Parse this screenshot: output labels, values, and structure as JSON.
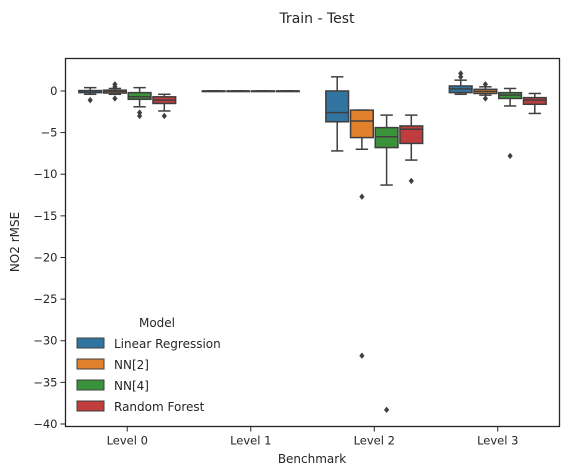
{
  "chart_data": {
    "type": "box",
    "title": "Train - Test",
    "xlabel": "Benchmark",
    "ylabel": "NO2 rMSE",
    "ylim": [
      -40.3,
      3.9
    ],
    "yticks": [
      0,
      -5,
      -10,
      -15,
      -20,
      -25,
      -30,
      -35,
      -40
    ],
    "categories": [
      "Level 0",
      "Level 1",
      "Level 2",
      "Level 3"
    ],
    "grid": false,
    "legend": {
      "title": "Model",
      "position": "lower-left"
    },
    "series": [
      {
        "name": "Linear Regression",
        "color": "#3274a1",
        "boxes": [
          {
            "whislo": -0.4,
            "q1": -0.2,
            "med": 0.0,
            "q3": 0.05,
            "whishi": 0.4,
            "fliers": [
              -1.1
            ]
          },
          {
            "whislo": 0.0,
            "q1": 0.0,
            "med": 0.0,
            "q3": 0.0,
            "whishi": 0.0,
            "fliers": []
          },
          {
            "whislo": -7.2,
            "q1": -3.7,
            "med": -2.6,
            "q3": 0.0,
            "whishi": 1.7,
            "fliers": []
          },
          {
            "whislo": -0.4,
            "q1": -0.2,
            "med": 0.25,
            "q3": 0.6,
            "whishi": 1.3,
            "fliers": [
              2.1,
              1.7
            ]
          }
        ]
      },
      {
        "name": "NN[2]",
        "color": "#e1812c",
        "boxes": [
          {
            "whislo": -0.4,
            "q1": -0.25,
            "med": -0.05,
            "q3": 0.1,
            "whishi": 0.3,
            "fliers": [
              0.8,
              0.5,
              -0.9
            ]
          },
          {
            "whislo": 0.0,
            "q1": 0.0,
            "med": 0.0,
            "q3": 0.0,
            "whishi": 0.0,
            "fliers": []
          },
          {
            "whislo": -7.0,
            "q1": -5.6,
            "med": -3.6,
            "q3": -2.3,
            "whishi": -2.3,
            "fliers": [
              -12.7,
              -31.8
            ]
          },
          {
            "whislo": -0.5,
            "q1": -0.3,
            "med": -0.05,
            "q3": 0.2,
            "whishi": 0.5,
            "fliers": [
              0.8,
              -0.9
            ]
          }
        ]
      },
      {
        "name": "NN[4]",
        "color": "#3a923a",
        "boxes": [
          {
            "whislo": -1.9,
            "q1": -1.0,
            "med": -0.7,
            "q3": -0.2,
            "whishi": 0.4,
            "fliers": [
              -2.6,
              -3.0
            ]
          },
          {
            "whislo": 0.0,
            "q1": 0.0,
            "med": 0.0,
            "q3": 0.0,
            "whishi": 0.0,
            "fliers": []
          },
          {
            "whislo": -11.3,
            "q1": -6.8,
            "med": -5.5,
            "q3": -4.4,
            "whishi": -2.9,
            "fliers": [
              -38.3
            ]
          },
          {
            "whislo": -1.8,
            "q1": -0.9,
            "med": -0.5,
            "q3": -0.2,
            "whishi": 0.3,
            "fliers": [
              -7.8
            ]
          }
        ]
      },
      {
        "name": "Random Forest",
        "color": "#c03d3e",
        "boxes": [
          {
            "whislo": -2.4,
            "q1": -1.5,
            "med": -1.1,
            "q3": -0.7,
            "whishi": -0.4,
            "fliers": [
              -3.0
            ]
          },
          {
            "whislo": 0.0,
            "q1": 0.0,
            "med": 0.0,
            "q3": 0.0,
            "whishi": 0.0,
            "fliers": []
          },
          {
            "whislo": -8.3,
            "q1": -6.3,
            "med": -4.6,
            "q3": -4.2,
            "whishi": -2.9,
            "fliers": [
              -10.8
            ]
          },
          {
            "whislo": -2.7,
            "q1": -1.6,
            "med": -1.1,
            "q3": -0.8,
            "whishi": -0.3,
            "fliers": []
          }
        ]
      }
    ]
  }
}
